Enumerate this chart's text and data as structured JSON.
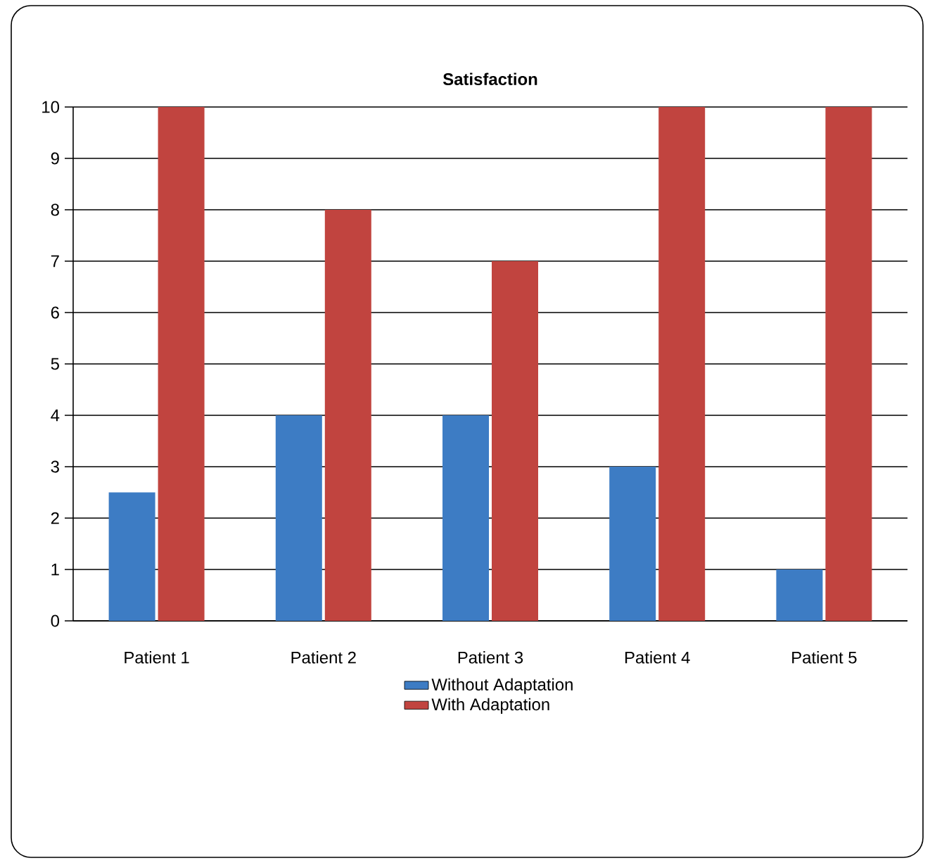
{
  "chart_data": {
    "type": "bar",
    "title": "Satisfaction",
    "categories": [
      "Patient 1",
      "Patient 2",
      "Patient 3",
      "Patient 4",
      "Patient 5"
    ],
    "series": [
      {
        "name": "Without Adaptation",
        "color": "#3d7cc4",
        "values": [
          2.5,
          4,
          4,
          3,
          1
        ]
      },
      {
        "name": "With Adaptation",
        "color": "#c1443f",
        "values": [
          10,
          8,
          7,
          10,
          10
        ]
      }
    ],
    "ylim": [
      0,
      10
    ],
    "yticks": [
      0,
      1,
      2,
      3,
      4,
      5,
      6,
      7,
      8,
      9,
      10
    ],
    "grid": "y",
    "legend": "bottom"
  }
}
